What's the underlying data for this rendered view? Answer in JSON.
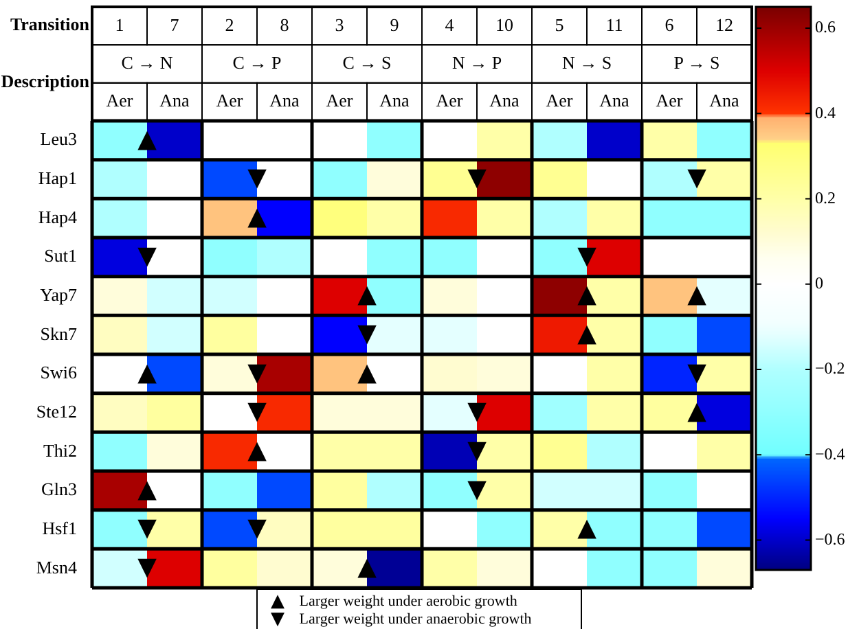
{
  "chart_data": {
    "type": "heatmap",
    "xlabel": "Transition",
    "categories": [
      "1",
      "7",
      "2",
      "8",
      "3",
      "9",
      "4",
      "10",
      "5",
      "11",
      "6",
      "12"
    ],
    "y_categories": [
      "Leu3",
      "Hap1",
      "Hap4",
      "Sut1",
      "Yap7",
      "Skn7",
      "Swi6",
      "Ste12",
      "Thi2",
      "Gln3",
      "Hsf1",
      "Msn4"
    ],
    "cells": [
      [
        -0.3,
        -0.6,
        0,
        0,
        0,
        -0.3,
        0,
        0.2,
        -0.2,
        -0.6,
        0.2,
        -0.3
      ],
      [
        -0.2,
        0,
        -0.45,
        0,
        -0.3,
        0.1,
        0.25,
        0.62,
        0.25,
        0,
        -0.2,
        0.2
      ],
      [
        -0.2,
        0,
        0.36,
        -0.55,
        0.3,
        0.2,
        0.42,
        0.2,
        -0.2,
        0.2,
        -0.3,
        -0.3
      ],
      [
        -0.58,
        0,
        -0.3,
        -0.2,
        0,
        -0.3,
        -0.3,
        0,
        -0.3,
        0.5,
        0,
        0
      ],
      [
        0.1,
        -0.15,
        -0.15,
        0,
        0.5,
        -0.3,
        0.1,
        0,
        0.62,
        0.2,
        0.36,
        -0.12
      ],
      [
        0.15,
        -0.15,
        0.22,
        0,
        -0.55,
        -0.12,
        -0.12,
        0,
        0.45,
        0.2,
        -0.3,
        -0.45
      ],
      [
        0,
        -0.45,
        0.1,
        0.58,
        0.36,
        0,
        0.12,
        0.1,
        0,
        0.2,
        -0.5,
        0.2
      ],
      [
        0.15,
        0.22,
        0,
        0.42,
        0.1,
        0.1,
        -0.12,
        0.5,
        -0.25,
        0.2,
        0.22,
        -0.58
      ],
      [
        -0.3,
        0.1,
        0.42,
        0,
        0.2,
        0.2,
        -0.62,
        0.2,
        0.25,
        -0.2,
        0,
        0.2
      ],
      [
        0.58,
        0,
        -0.3,
        -0.45,
        0.22,
        -0.2,
        -0.3,
        0.2,
        -0.15,
        -0.15,
        -0.3,
        0
      ],
      [
        -0.3,
        0.2,
        -0.45,
        0.15,
        0.22,
        0.22,
        0,
        -0.3,
        0.2,
        -0.3,
        -0.3,
        -0.45
      ],
      [
        -0.15,
        0.5,
        0.22,
        0.12,
        0.1,
        -0.65,
        0.2,
        0.1,
        0,
        -0.3,
        -0.3,
        0.1
      ]
    ],
    "cell_labels": [
      [
        "▲",
        null,
        null,
        null,
        null,
        null,
        null,
        null,
        null,
        null,
        null,
        null
      ],
      [
        null,
        null,
        "▼",
        null,
        null,
        null,
        "▼",
        null,
        null,
        null,
        "▼",
        null
      ],
      [
        null,
        null,
        "▲",
        null,
        null,
        null,
        null,
        null,
        null,
        null,
        null,
        null
      ],
      [
        "▼",
        null,
        null,
        null,
        null,
        null,
        null,
        null,
        "▼",
        null,
        null,
        null
      ],
      [
        null,
        null,
        null,
        null,
        "▲",
        null,
        null,
        null,
        "▲",
        null,
        "▲",
        null
      ],
      [
        null,
        null,
        null,
        null,
        "▼",
        null,
        null,
        null,
        "▲",
        null,
        null,
        null
      ],
      [
        "▲",
        null,
        "▼",
        null,
        "▲",
        null,
        null,
        null,
        null,
        null,
        "▼",
        null
      ],
      [
        null,
        null,
        "▼",
        null,
        null,
        null,
        "▼",
        null,
        null,
        null,
        "▲",
        null
      ],
      [
        null,
        null,
        "▲",
        null,
        null,
        null,
        "▼",
        null,
        null,
        null,
        null,
        null
      ],
      [
        "▲",
        null,
        null,
        null,
        null,
        null,
        "▼",
        null,
        null,
        null,
        null,
        null
      ],
      [
        "▼",
        null,
        "▼",
        null,
        null,
        null,
        null,
        null,
        "▲",
        null,
        null,
        null
      ],
      [
        "▼",
        null,
        null,
        null,
        "▲",
        null,
        null,
        null,
        null,
        null,
        null,
        null
      ]
    ],
    "clim": [
      -0.67,
      0.65
    ],
    "cticks": [
      -0.6,
      -0.4,
      -0.2,
      0,
      0.2,
      0.4,
      0.6
    ],
    "grid": true,
    "annotations": [
      "Description",
      "C → N",
      "C → P",
      "C → S",
      "N → P",
      "N → S",
      "P → S",
      "Aer",
      "Ana",
      "Aer",
      "Ana",
      "Aer",
      "Ana",
      "Aer",
      "Ana",
      "Aer",
      "Ana",
      "Aer",
      "Ana",
      "▲ Larger weight under aerobic growth",
      "▼ Larger weight under anaerobic growth"
    ]
  }
}
